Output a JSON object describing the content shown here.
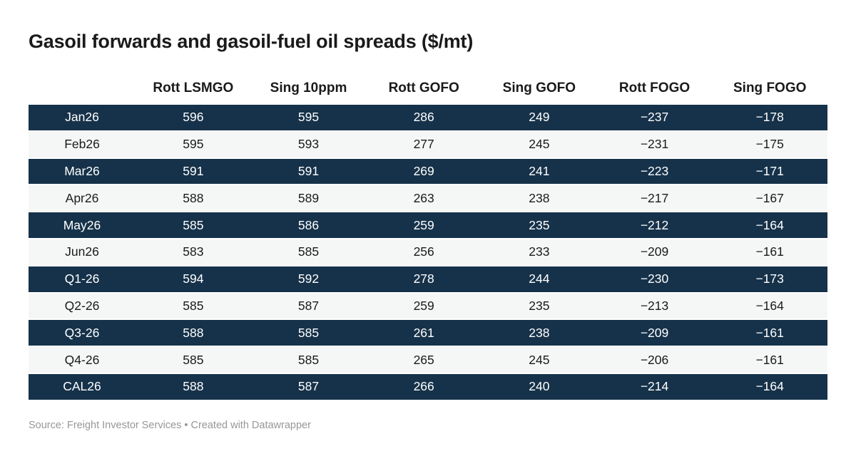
{
  "title": "Gasoil forwards and gasoil-fuel oil spreads ($/mt)",
  "footer": {
    "text": "Source: Freight Investor Services • Created with Datawrapper"
  },
  "colors": {
    "row_dark_bg": "#16324a",
    "row_light_bg": "#f5f6f6",
    "row_dark_text": "#ffffff",
    "body_text": "#1a1a1a",
    "footer_text": "#979797",
    "background": "#ffffff"
  },
  "chart_data": {
    "type": "table",
    "title": "Gasoil forwards and gasoil-fuel oil spreads ($/mt)",
    "columns": [
      "",
      "Rott LSMGO",
      "Sing 10ppm",
      "Rott GOFO",
      "Sing GOFO",
      "Rott FOGO",
      "Sing FOGO"
    ],
    "rows": [
      {
        "label": "Jan26",
        "values": [
          "596",
          "595",
          "286",
          "249",
          "−237",
          "−178"
        ]
      },
      {
        "label": "Feb26",
        "values": [
          "595",
          "593",
          "277",
          "245",
          "−231",
          "−175"
        ]
      },
      {
        "label": "Mar26",
        "values": [
          "591",
          "591",
          "269",
          "241",
          "−223",
          "−171"
        ]
      },
      {
        "label": "Apr26",
        "values": [
          "588",
          "589",
          "263",
          "238",
          "−217",
          "−167"
        ]
      },
      {
        "label": "May26",
        "values": [
          "585",
          "586",
          "259",
          "235",
          "−212",
          "−164"
        ]
      },
      {
        "label": "Jun26",
        "values": [
          "583",
          "585",
          "256",
          "233",
          "−209",
          "−161"
        ]
      },
      {
        "label": "Q1-26",
        "values": [
          "594",
          "592",
          "278",
          "244",
          "−230",
          "−173"
        ]
      },
      {
        "label": "Q2-26",
        "values": [
          "585",
          "587",
          "259",
          "235",
          "−213",
          "−164"
        ]
      },
      {
        "label": "Q3-26",
        "values": [
          "588",
          "585",
          "261",
          "238",
          "−209",
          "−161"
        ]
      },
      {
        "label": "Q4-26",
        "values": [
          "585",
          "585",
          "265",
          "245",
          "−206",
          "−161"
        ]
      },
      {
        "label": "CAL26",
        "values": [
          "588",
          "587",
          "266",
          "240",
          "−214",
          "−164"
        ]
      }
    ],
    "layout": {
      "striping": "alternating rows starting dark",
      "alignment": "centered columns",
      "grid": "off"
    }
  }
}
